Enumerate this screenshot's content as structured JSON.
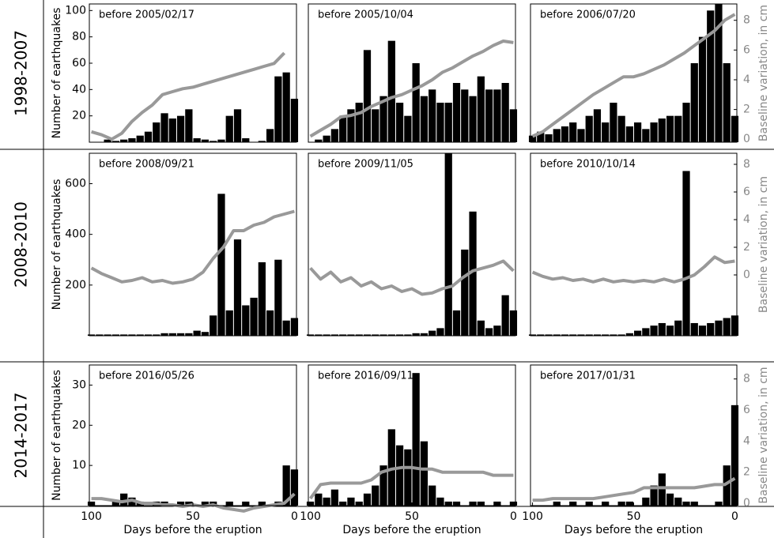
{
  "figure": {
    "row_labels": [
      "1998-2007",
      "2008-2010",
      "2014-2017"
    ]
  },
  "chart_data": [
    {
      "type": "bar",
      "title": "before 2005/02/17",
      "ylabel": "Number of earthquakes",
      "xlim": [
        101,
        -1
      ],
      "ylim": [
        0,
        105
      ],
      "yticks": [
        20,
        40,
        60,
        80,
        100
      ],
      "y2lim": [
        -0.2,
        9.1
      ],
      "series": [
        {
          "type": "bar",
          "color": "#000000",
          "x": [
            100,
            96,
            92,
            88,
            84,
            80,
            76,
            72,
            68,
            64,
            60,
            56,
            52,
            48,
            44,
            40,
            36,
            32,
            28,
            24,
            20,
            16,
            12,
            8,
            4,
            0
          ],
          "values": [
            0,
            0,
            2,
            1,
            2,
            3,
            5,
            8,
            15,
            22,
            18,
            20,
            25,
            3,
            2,
            1,
            2,
            20,
            25,
            3,
            0,
            1,
            10,
            50,
            53,
            33
          ]
        },
        {
          "type": "line",
          "color": "#999999",
          "axis": "y2",
          "x": [
            100,
            95,
            90,
            85,
            80,
            75,
            70,
            65,
            60,
            55,
            50,
            45,
            40,
            35,
            30,
            25,
            20,
            15,
            10,
            5,
            0
          ],
          "values": [
            0.5,
            0.3,
            0.0,
            0.4,
            1.2,
            1.8,
            2.3,
            3.0,
            3.2,
            3.4,
            3.5,
            3.7,
            3.9,
            4.1,
            4.3,
            4.5,
            4.7,
            4.9,
            5.1,
            5.8,
            null
          ]
        }
      ]
    },
    {
      "type": "bar",
      "title": "before 2005/10/04",
      "xlim": [
        101,
        -1
      ],
      "ylim": [
        0,
        105
      ],
      "y2lim": [
        -0.2,
        9.1
      ],
      "series": [
        {
          "type": "bar",
          "color": "#000000",
          "x": [
            100,
            96,
            92,
            88,
            84,
            80,
            76,
            72,
            68,
            64,
            60,
            56,
            52,
            48,
            44,
            40,
            36,
            32,
            28,
            24,
            20,
            16,
            12,
            8,
            4,
            0
          ],
          "values": [
            0,
            2,
            5,
            10,
            20,
            25,
            30,
            70,
            25,
            35,
            77,
            30,
            20,
            60,
            35,
            40,
            30,
            30,
            45,
            40,
            35,
            50,
            40,
            40,
            45,
            25
          ]
        },
        {
          "type": "line",
          "color": "#999999",
          "axis": "y2",
          "x": [
            100,
            95,
            90,
            85,
            80,
            75,
            70,
            65,
            60,
            55,
            50,
            45,
            40,
            35,
            30,
            25,
            20,
            15,
            10,
            5,
            0
          ],
          "values": [
            0.2,
            0.6,
            1.0,
            1.5,
            1.6,
            1.8,
            2.2,
            2.5,
            2.8,
            3.0,
            3.3,
            3.6,
            4.0,
            4.5,
            4.8,
            5.2,
            5.6,
            5.9,
            6.3,
            6.6,
            6.5
          ]
        }
      ]
    },
    {
      "type": "bar",
      "title": "before 2006/07/20",
      "y2label": "Baseline variation, in cm",
      "xlim": [
        101,
        -1
      ],
      "ylim": [
        0,
        105
      ],
      "y2lim": [
        -0.2,
        9.1
      ],
      "y2ticks": [
        0,
        2,
        4,
        6,
        8
      ],
      "series": [
        {
          "type": "bar",
          "color": "#000000",
          "x": [
            100,
            96,
            92,
            88,
            84,
            80,
            76,
            72,
            68,
            64,
            60,
            56,
            52,
            48,
            44,
            40,
            36,
            32,
            28,
            24,
            20,
            16,
            12,
            8,
            4,
            0
          ],
          "values": [
            5,
            8,
            6,
            10,
            12,
            15,
            10,
            20,
            25,
            15,
            30,
            20,
            12,
            15,
            10,
            15,
            18,
            20,
            20,
            30,
            60,
            80,
            100,
            108,
            60,
            20
          ]
        },
        {
          "type": "line",
          "color": "#999999",
          "axis": "y2",
          "x": [
            100,
            95,
            90,
            85,
            80,
            75,
            70,
            65,
            60,
            55,
            50,
            45,
            40,
            35,
            30,
            25,
            20,
            15,
            10,
            5,
            0
          ],
          "values": [
            0.2,
            0.5,
            1.0,
            1.5,
            2.0,
            2.5,
            3.0,
            3.4,
            3.8,
            4.2,
            4.2,
            4.4,
            4.7,
            5.0,
            5.4,
            5.8,
            6.3,
            6.8,
            7.3,
            8.0,
            8.4
          ]
        }
      ]
    },
    {
      "type": "bar",
      "title": "before 2008/09/21",
      "ylabel": "Number of earthquakes",
      "xlim": [
        101,
        -1
      ],
      "ylim": [
        0,
        720
      ],
      "yticks": [
        200,
        400,
        600
      ],
      "y2lim": [
        -4.4,
        8.8
      ],
      "series": [
        {
          "type": "bar",
          "color": "#000000",
          "x": [
            100,
            96,
            92,
            88,
            84,
            80,
            76,
            72,
            68,
            64,
            60,
            56,
            52,
            48,
            44,
            40,
            36,
            32,
            28,
            24,
            20,
            16,
            12,
            8,
            4,
            0
          ],
          "values": [
            5,
            5,
            5,
            5,
            5,
            5,
            5,
            5,
            5,
            10,
            10,
            10,
            10,
            20,
            15,
            80,
            560,
            100,
            380,
            120,
            150,
            290,
            100,
            300,
            60,
            70
          ]
        },
        {
          "type": "line",
          "color": "#999999",
          "axis": "y2",
          "x": [
            100,
            95,
            90,
            85,
            80,
            75,
            70,
            65,
            60,
            55,
            50,
            45,
            40,
            35,
            30,
            25,
            20,
            15,
            10,
            5,
            0
          ],
          "values": [
            0.5,
            0.1,
            -0.2,
            -0.5,
            -0.4,
            -0.2,
            -0.5,
            -0.4,
            -0.6,
            -0.5,
            -0.3,
            0.2,
            1.2,
            2.0,
            3.2,
            3.2,
            3.6,
            3.8,
            4.2,
            4.4,
            4.6
          ]
        }
      ]
    },
    {
      "type": "bar",
      "title": "before 2009/11/05",
      "xlim": [
        101,
        -1
      ],
      "ylim": [
        0,
        720
      ],
      "y2lim": [
        -4.4,
        8.8
      ],
      "series": [
        {
          "type": "bar",
          "color": "#000000",
          "x": [
            100,
            96,
            92,
            88,
            84,
            80,
            76,
            72,
            68,
            64,
            60,
            56,
            52,
            48,
            44,
            40,
            36,
            32,
            28,
            24,
            20,
            16,
            12,
            8,
            4,
            0
          ],
          "values": [
            5,
            5,
            5,
            5,
            5,
            5,
            5,
            5,
            5,
            5,
            5,
            5,
            5,
            10,
            10,
            20,
            30,
            720,
            100,
            340,
            490,
            60,
            30,
            40,
            160,
            100
          ]
        },
        {
          "type": "line",
          "color": "#999999",
          "axis": "y2",
          "x": [
            100,
            95,
            90,
            85,
            80,
            75,
            70,
            65,
            60,
            55,
            50,
            45,
            40,
            35,
            30,
            25,
            20,
            15,
            10,
            5,
            0
          ],
          "values": [
            0.5,
            -0.3,
            0.2,
            -0.5,
            -0.2,
            -0.8,
            -0.5,
            -1.0,
            -0.8,
            -1.2,
            -1.0,
            -1.4,
            -1.3,
            -1.0,
            -0.8,
            -0.2,
            0.3,
            0.5,
            0.7,
            1.0,
            0.3
          ]
        }
      ]
    },
    {
      "type": "bar",
      "title": "before 2010/10/14",
      "y2label": "Baseline variation, in cm",
      "xlim": [
        101,
        -1
      ],
      "ylim": [
        0,
        720
      ],
      "y2lim": [
        -4.4,
        8.8
      ],
      "y2ticks": [
        0,
        2,
        4,
        6,
        8
      ],
      "series": [
        {
          "type": "bar",
          "color": "#000000",
          "x": [
            100,
            96,
            92,
            88,
            84,
            80,
            76,
            72,
            68,
            64,
            60,
            56,
            52,
            48,
            44,
            40,
            36,
            32,
            28,
            24,
            20,
            16,
            12,
            8,
            4,
            0
          ],
          "values": [
            5,
            5,
            5,
            5,
            5,
            5,
            5,
            5,
            5,
            5,
            5,
            5,
            10,
            20,
            30,
            40,
            50,
            40,
            60,
            650,
            50,
            40,
            50,
            60,
            70,
            80
          ]
        },
        {
          "type": "line",
          "color": "#999999",
          "axis": "y2",
          "x": [
            100,
            95,
            90,
            85,
            80,
            75,
            70,
            65,
            60,
            55,
            50,
            45,
            40,
            35,
            30,
            25,
            20,
            15,
            10,
            5,
            0
          ],
          "values": [
            0.2,
            -0.1,
            -0.3,
            -0.2,
            -0.4,
            -0.3,
            -0.5,
            -0.3,
            -0.5,
            -0.4,
            -0.5,
            -0.4,
            -0.5,
            -0.3,
            -0.5,
            -0.3,
            0.0,
            0.6,
            1.3,
            0.9,
            1.0
          ]
        }
      ]
    },
    {
      "type": "bar",
      "title": "before 2016/05/26",
      "ylabel": "Number of earthquakes",
      "xlabel": "Days before the eruption",
      "xlim": [
        101,
        -1
      ],
      "xticks": [
        100,
        50,
        0
      ],
      "ylim": [
        0,
        35
      ],
      "yticks": [
        10,
        20,
        30
      ],
      "y2lim": [
        -0.15,
        8.9
      ],
      "series": [
        {
          "type": "bar",
          "color": "#000000",
          "x": [
            100,
            96,
            92,
            88,
            84,
            80,
            76,
            72,
            68,
            64,
            60,
            56,
            52,
            48,
            44,
            40,
            36,
            32,
            28,
            24,
            20,
            16,
            12,
            8,
            4,
            0
          ],
          "values": [
            1,
            0,
            0,
            1,
            3,
            2,
            1,
            0,
            1,
            1,
            0,
            1,
            1,
            0,
            1,
            1,
            0,
            1,
            0,
            1,
            0,
            1,
            0,
            1,
            10,
            9
          ]
        },
        {
          "type": "line",
          "color": "#999999",
          "axis": "y2",
          "x": [
            100,
            95,
            90,
            85,
            80,
            75,
            70,
            65,
            60,
            55,
            50,
            45,
            40,
            35,
            30,
            25,
            20,
            15,
            10,
            5,
            0
          ],
          "values": [
            0.3,
            0.3,
            0.2,
            0.1,
            0.2,
            0.0,
            0.0,
            -0.1,
            -0.1,
            -0.2,
            -0.1,
            -0.2,
            -0.1,
            -0.3,
            -0.4,
            -0.5,
            -0.3,
            -0.2,
            -0.1,
            0.0,
            0.6
          ]
        }
      ]
    },
    {
      "type": "bar",
      "title": "before 2016/09/11",
      "xlabel": "Days before the eruption",
      "xlim": [
        101,
        -1
      ],
      "xticks": [
        100,
        50,
        0
      ],
      "ylim": [
        0,
        35
      ],
      "y2lim": [
        -0.15,
        8.9
      ],
      "series": [
        {
          "type": "bar",
          "color": "#000000",
          "x": [
            100,
            96,
            92,
            88,
            84,
            80,
            76,
            72,
            68,
            64,
            60,
            56,
            52,
            48,
            44,
            40,
            36,
            32,
            28,
            24,
            20,
            16,
            12,
            8,
            4,
            0
          ],
          "values": [
            1,
            3,
            2,
            4,
            1,
            2,
            1,
            3,
            5,
            10,
            19,
            15,
            14,
            33,
            16,
            5,
            2,
            1,
            1,
            0,
            1,
            1,
            0,
            1,
            0,
            1
          ]
        },
        {
          "type": "line",
          "color": "#999999",
          "axis": "y2",
          "x": [
            100,
            95,
            90,
            85,
            80,
            75,
            70,
            65,
            60,
            55,
            50,
            45,
            40,
            35,
            30,
            25,
            20,
            15,
            10,
            5,
            0
          ],
          "values": [
            0.3,
            1.2,
            1.3,
            1.3,
            1.3,
            1.3,
            1.5,
            2.0,
            2.2,
            2.3,
            2.3,
            2.2,
            2.2,
            2.0,
            2.0,
            2.0,
            2.0,
            2.0,
            1.8,
            1.8,
            1.8
          ]
        }
      ]
    },
    {
      "type": "bar",
      "title": "before 2017/01/31",
      "xlabel": "Days before the eruption",
      "y2label": "Baseline variation, in cm",
      "xlim": [
        101,
        -1
      ],
      "xticks": [
        100,
        50,
        0
      ],
      "ylim": [
        0,
        35
      ],
      "y2lim": [
        -0.15,
        8.9
      ],
      "y2ticks": [
        0,
        2,
        4,
        6,
        8
      ],
      "series": [
        {
          "type": "bar",
          "color": "#000000",
          "x": [
            100,
            96,
            92,
            88,
            84,
            80,
            76,
            72,
            68,
            64,
            60,
            56,
            52,
            48,
            44,
            40,
            36,
            32,
            28,
            24,
            20,
            16,
            12,
            8,
            4,
            0
          ],
          "values": [
            0,
            0,
            0,
            1,
            0,
            1,
            0,
            1,
            0,
            1,
            0,
            1,
            1,
            0,
            2,
            5,
            8,
            3,
            2,
            1,
            1,
            0,
            0,
            1,
            10,
            25
          ]
        },
        {
          "type": "line",
          "color": "#999999",
          "axis": "y2",
          "x": [
            100,
            95,
            90,
            85,
            80,
            75,
            70,
            65,
            60,
            55,
            50,
            45,
            40,
            35,
            30,
            25,
            20,
            15,
            10,
            5,
            0
          ],
          "values": [
            0.2,
            0.2,
            0.3,
            0.3,
            0.3,
            0.3,
            0.3,
            0.4,
            0.5,
            0.6,
            0.7,
            1.0,
            1.0,
            1.0,
            1.0,
            1.0,
            1.0,
            1.1,
            1.2,
            1.2,
            1.6
          ]
        }
      ]
    }
  ]
}
